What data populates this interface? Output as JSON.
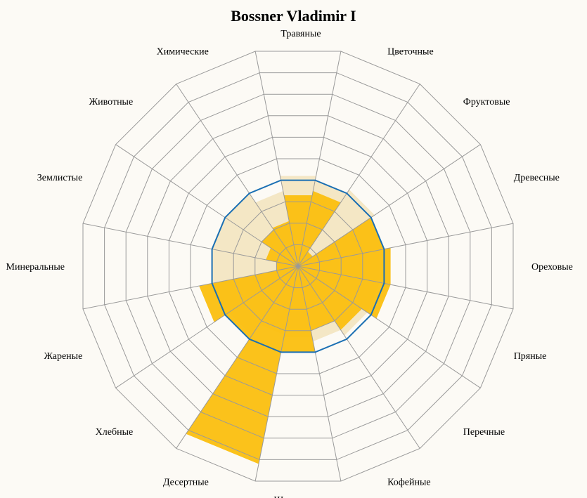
{
  "chart_data": {
    "type": "radar",
    "title": "Bossner Vladimir I",
    "rmax": 10,
    "rings": 10,
    "categories": [
      "Травяные",
      "Цветочные",
      "Фруктовые",
      "Древесные",
      "Ореховые",
      "Пряные",
      "Перечные",
      "Кофейные",
      "Шоколадные",
      "Десертные",
      "Хлебные",
      "Жареные",
      "Минеральные",
      "Землистые",
      "Животные",
      "Химические"
    ],
    "series": [
      {
        "type": "area-light",
        "values": [
          4.2,
          4.0,
          4.2,
          4.0,
          3.8,
          3.8,
          3.8,
          3.5,
          3.3,
          3.2,
          3.8,
          4.0,
          4.0,
          4.0,
          4.0,
          3.5
        ],
        "color": "#f3e4c0"
      },
      {
        "type": "area-bar",
        "values": [
          3.3,
          3.5,
          0.8,
          4.0,
          4.3,
          4.3,
          3.5,
          3.0,
          4.0,
          9.2,
          4.0,
          4.6,
          1.0,
          1.5,
          2.0,
          2.1
        ],
        "color": "#fbbf0f"
      },
      {
        "type": "line",
        "values": [
          4.0,
          4.0,
          4.0,
          4.0,
          4.0,
          4.0,
          4.0,
          4.0,
          4.0,
          4.0,
          4.0,
          4.0,
          4.0,
          4.0,
          4.0,
          4.0
        ],
        "color": "#1a6fb3"
      }
    ]
  }
}
